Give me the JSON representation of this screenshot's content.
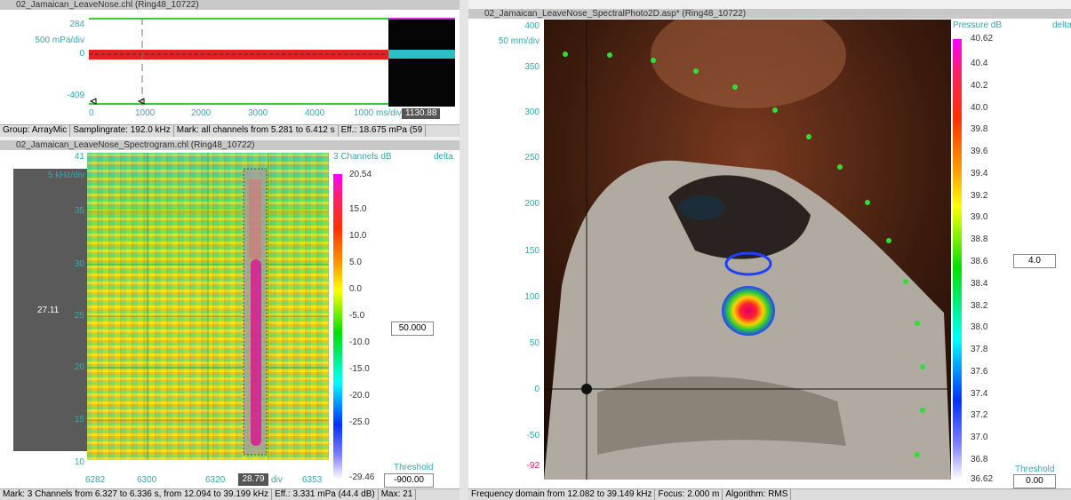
{
  "waveform": {
    "title": "02_Jamaican_LeaveNose.chl (Ring48_10722)",
    "y_labels": [
      "284",
      "500 mPa/div",
      "0",
      "-409"
    ],
    "x_labels": [
      "0",
      "1000",
      "2000",
      "3000",
      "4000",
      "1000 ms/div"
    ],
    "cursor": "1130.88",
    "status": [
      "Group: ArrayMic",
      "Samplingrate: 192.0 kHz",
      "Mark: all channels from 5.281 to 6.412 s",
      "Eff.: 18.675 mPa (59"
    ]
  },
  "spectrogram": {
    "title": "02_Jamaican_LeaveNose_Spectrogram.chl (Ring48_10722)",
    "y_labels": [
      "41",
      "5 kHz/div",
      "35",
      "30",
      "25",
      "20",
      "15",
      "10"
    ],
    "cursor_y": "27.11",
    "x_labels": [
      "6282",
      "6300",
      "6320",
      "6353"
    ],
    "cursor_x": "28.79",
    "x_unit": "div",
    "legend_title": "3 Channels dB",
    "delta": "delta",
    "scale": [
      "20.54",
      "15.0",
      "10.0",
      "5.0",
      "0.0",
      "-5.0",
      "-10.0",
      "-15.0",
      "-20.0",
      "-25.0",
      "-29.46"
    ],
    "value_box": "50.000",
    "threshold_label": "Threshold",
    "threshold": "-900.00",
    "status": [
      "Mark: 3 Channels from 6.327 to 6.336 s, from 12.094 to 39.199 kHz",
      "Eff.: 3.331 mPa (44.4 dB)",
      "Max: 21"
    ]
  },
  "photo": {
    "title": "02_Jamaican_LeaveNose_SpectralPhoto2D.asp* (Ring48_10722)",
    "y_labels": [
      "400",
      "50 mm/div",
      "350",
      "300",
      "250",
      "200",
      "150",
      "100",
      "50",
      "0",
      "-50",
      "-92"
    ],
    "legend_title": "Pressure dB",
    "delta": "delta",
    "scale": [
      "40.62",
      "40.4",
      "40.2",
      "40.0",
      "39.8",
      "39.6",
      "39.4",
      "39.2",
      "39.0",
      "38.8",
      "38.6",
      "38.4",
      "38.2",
      "38.0",
      "37.8",
      "37.6",
      "37.4",
      "37.2",
      "37.0",
      "36.8",
      "36.62"
    ],
    "value_box": "4.0",
    "threshold_label": "Threshold",
    "threshold": "0.00",
    "status": [
      "Frequency domain from 12.082 to 39.149 kHz",
      "Focus: 2.000 m",
      "Algorithm: RMS"
    ]
  }
}
